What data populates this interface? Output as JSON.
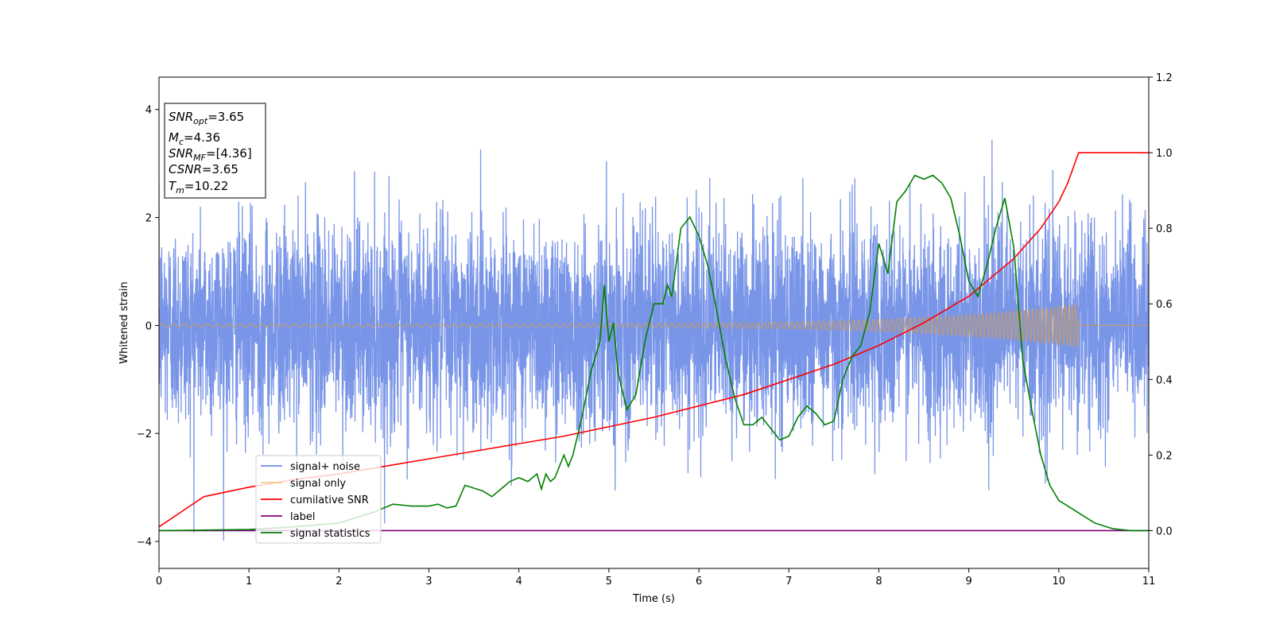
{
  "chart_data": {
    "type": "line",
    "xlabel": "Time (s)",
    "ylabel": "Whitened strain",
    "xlim": [
      0,
      11
    ],
    "ylim_left": [
      -4.5,
      4.6
    ],
    "ylim_right": [
      -0.1,
      1.2
    ],
    "x_ticks": [
      "0",
      "1",
      "2",
      "3",
      "4",
      "5",
      "6",
      "7",
      "8",
      "9",
      "10",
      "11"
    ],
    "y_left_ticks": [
      "−4",
      "−2",
      "0",
      "2",
      "4"
    ],
    "y_right_ticks": [
      "0.0",
      "0.2",
      "0.4",
      "0.6",
      "0.8",
      "1.0",
      "1.2"
    ],
    "grid": false,
    "legend_position": "lower-left",
    "info_box": {
      "snr_opt": {
        "base": "SNR",
        "sub": "opt",
        "value": "=3.65"
      },
      "mc": {
        "base": "M",
        "sub": "c",
        "value": "=4.36"
      },
      "snr_mf": {
        "base": "SNR",
        "sub": "MF",
        "value": "=[4.36]"
      },
      "csnr": {
        "base": "CSNR",
        "sub": "",
        "value": "=3.65"
      },
      "tm": {
        "base": "T",
        "sub": "m",
        "value": "=10.22"
      }
    },
    "series": [
      {
        "name": "signal+ noise",
        "color": "#6a8ae6",
        "axis": "left",
        "description_values": {
          "std": 0.95,
          "x_range": [
            0,
            11
          ]
        }
      },
      {
        "name": "signal only",
        "color": "#f5b86a",
        "axis": "left",
        "chirp": {
          "start": 0,
          "end": 10.22,
          "amp_start": 0.03,
          "amp_end": 0.4
        }
      },
      {
        "name": "cumilative SNR",
        "color": "#ff0000",
        "axis": "right",
        "x": [
          0,
          0.5,
          1,
          1.5,
          2,
          2.5,
          3,
          3.5,
          4,
          4.5,
          5,
          5.5,
          6,
          6.5,
          7,
          7.5,
          8,
          8.5,
          9,
          9.5,
          9.8,
          10,
          10.1,
          10.22,
          11
        ],
        "values": [
          0.01,
          0.09,
          0.115,
          0.135,
          0.15,
          0.17,
          0.19,
          0.21,
          0.23,
          0.25,
          0.275,
          0.3,
          0.33,
          0.36,
          0.4,
          0.44,
          0.49,
          0.55,
          0.62,
          0.72,
          0.8,
          0.87,
          0.92,
          1.0,
          1.0
        ]
      },
      {
        "name": "label",
        "color": "#800080",
        "axis": "right",
        "x": [
          0,
          11
        ],
        "values": [
          0,
          0
        ]
      },
      {
        "name": "signal statistics",
        "color": "#008000",
        "axis": "right",
        "x": [
          0,
          1,
          1.5,
          2,
          2.2,
          2.4,
          2.5,
          2.6,
          2.8,
          3.0,
          3.1,
          3.2,
          3.3,
          3.4,
          3.6,
          3.7,
          3.8,
          3.9,
          4.0,
          4.1,
          4.2,
          4.25,
          4.3,
          4.35,
          4.4,
          4.5,
          4.55,
          4.6,
          4.7,
          4.8,
          4.9,
          4.95,
          5.0,
          5.05,
          5.1,
          5.2,
          5.3,
          5.4,
          5.5,
          5.6,
          5.65,
          5.7,
          5.8,
          5.9,
          6.0,
          6.1,
          6.2,
          6.3,
          6.4,
          6.5,
          6.6,
          6.7,
          6.8,
          6.9,
          7.0,
          7.1,
          7.2,
          7.3,
          7.4,
          7.5,
          7.6,
          7.7,
          7.8,
          7.9,
          8.0,
          8.1,
          8.2,
          8.3,
          8.4,
          8.5,
          8.6,
          8.7,
          8.8,
          8.9,
          9.0,
          9.1,
          9.2,
          9.3,
          9.4,
          9.5,
          9.6,
          9.7,
          9.8,
          9.9,
          10.0,
          10.2,
          10.4,
          10.6,
          10.8,
          11.0
        ],
        "values": [
          0.0,
          0.003,
          0.01,
          0.02,
          0.035,
          0.05,
          0.06,
          0.07,
          0.065,
          0.065,
          0.07,
          0.06,
          0.065,
          0.12,
          0.105,
          0.09,
          0.11,
          0.13,
          0.14,
          0.13,
          0.15,
          0.11,
          0.15,
          0.13,
          0.14,
          0.2,
          0.17,
          0.2,
          0.3,
          0.42,
          0.5,
          0.65,
          0.5,
          0.55,
          0.42,
          0.32,
          0.36,
          0.5,
          0.6,
          0.6,
          0.65,
          0.62,
          0.8,
          0.83,
          0.78,
          0.7,
          0.58,
          0.45,
          0.35,
          0.28,
          0.28,
          0.3,
          0.27,
          0.24,
          0.25,
          0.3,
          0.33,
          0.31,
          0.28,
          0.29,
          0.4,
          0.46,
          0.49,
          0.58,
          0.76,
          0.68,
          0.87,
          0.9,
          0.94,
          0.93,
          0.94,
          0.92,
          0.88,
          0.78,
          0.66,
          0.62,
          0.7,
          0.8,
          0.88,
          0.75,
          0.45,
          0.32,
          0.2,
          0.12,
          0.08,
          0.05,
          0.02,
          0.005,
          0.0,
          0.0
        ]
      }
    ]
  }
}
